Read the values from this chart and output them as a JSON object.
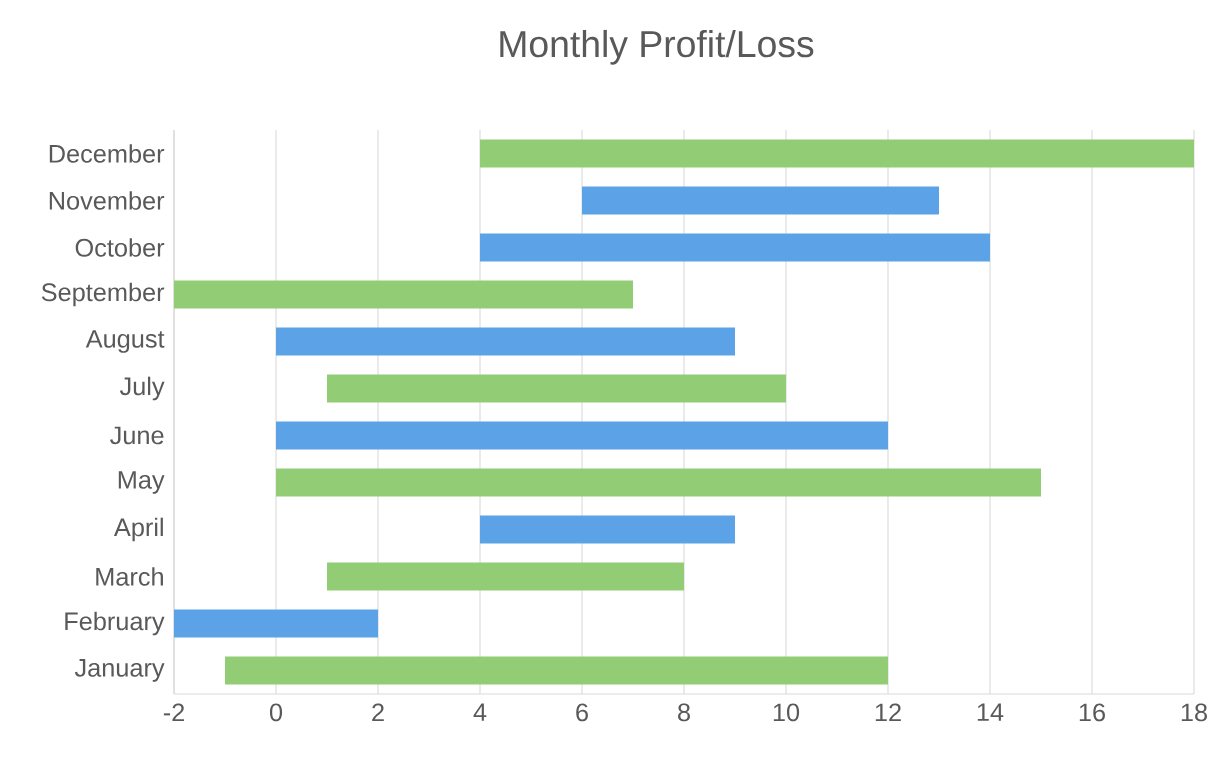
{
  "chart_data": {
    "type": "bar",
    "orientation": "horizontal",
    "title": "Monthly Profit/Loss",
    "categories": [
      "December",
      "November",
      "October",
      "September",
      "August",
      "July",
      "June",
      "May",
      "April",
      "March",
      "February",
      "January"
    ],
    "base": [
      4,
      6,
      4,
      -2,
      0,
      1,
      0,
      0,
      4,
      1,
      -2,
      -1
    ],
    "values": [
      14,
      7,
      10,
      9,
      9,
      9,
      12,
      15,
      5,
      7,
      4,
      13
    ],
    "colors": [
      "#92cd75",
      "#5ba3e6",
      "#5ba3e6",
      "#92cd75",
      "#5ba3e6",
      "#92cd75",
      "#5ba3e6",
      "#92cd75",
      "#5ba3e6",
      "#92cd75",
      "#5ba3e6",
      "#92cd75"
    ],
    "xlim": [
      -2,
      18
    ],
    "xticks": [
      -2,
      0,
      2,
      4,
      6,
      8,
      10,
      12,
      14,
      16,
      18
    ],
    "grid": "x"
  }
}
